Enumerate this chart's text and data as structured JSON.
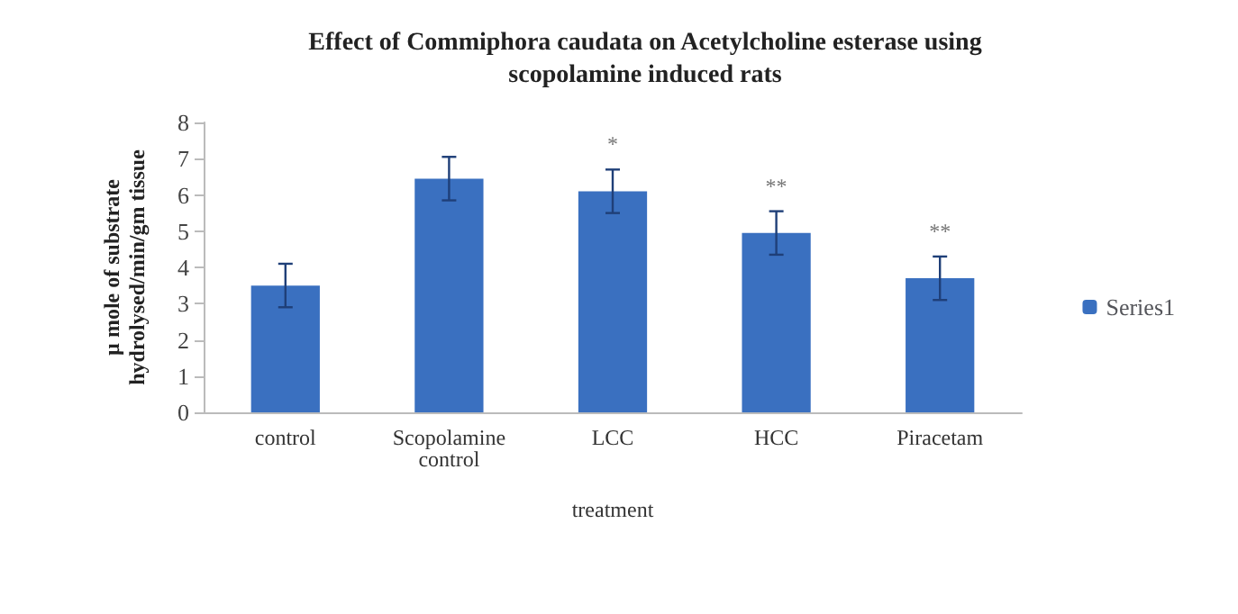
{
  "chart_data": {
    "type": "bar",
    "title": "Effect of Commiphora caudata on Acetylcholine esterase using\nscopolamine induced rats",
    "xlabel": "treatment",
    "ylabel": "µ mole of substrate\nhydrolysed/min/gm tissue",
    "categories": [
      "control",
      "Scopolamine\ncontrol",
      "LCC",
      "HCC",
      "Piracetam"
    ],
    "series": [
      {
        "name": "Series1",
        "color": "#3a70c0",
        "values": [
          3.5,
          6.45,
          6.1,
          4.95,
          3.7
        ],
        "errors": [
          0.6,
          0.6,
          0.6,
          0.6,
          0.6
        ]
      }
    ],
    "ylim": [
      0,
      8
    ],
    "yticks": [
      0,
      1,
      2,
      3,
      4,
      5,
      6,
      7,
      8
    ],
    "grid": false,
    "legend": "right",
    "annotations": [
      {
        "text": "*",
        "x": "LCC",
        "y": 6.7
      },
      {
        "text": "**",
        "x": "HCC",
        "y": 5.55
      },
      {
        "text": "**",
        "x": "Piracetam",
        "y": 4.3
      }
    ]
  }
}
